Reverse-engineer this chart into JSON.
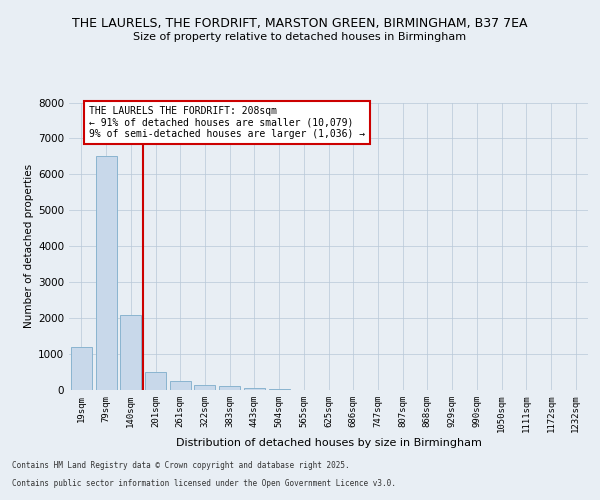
{
  "title_line1": "THE LAURELS, THE FORDRIFT, MARSTON GREEN, BIRMINGHAM, B37 7EA",
  "title_line2": "Size of property relative to detached houses in Birmingham",
  "xlabel": "Distribution of detached houses by size in Birmingham",
  "ylabel": "Number of detached properties",
  "bins": [
    "19sqm",
    "79sqm",
    "140sqm",
    "201sqm",
    "261sqm",
    "322sqm",
    "383sqm",
    "443sqm",
    "504sqm",
    "565sqm",
    "625sqm",
    "686sqm",
    "747sqm",
    "807sqm",
    "868sqm",
    "929sqm",
    "990sqm",
    "1050sqm",
    "1111sqm",
    "1172sqm",
    "1232sqm"
  ],
  "values": [
    1200,
    6500,
    2100,
    500,
    250,
    150,
    100,
    50,
    20,
    5,
    2,
    1,
    0,
    0,
    0,
    0,
    0,
    0,
    0,
    0,
    0
  ],
  "bar_color": "#c8d8ea",
  "bar_edge_color": "#8ab4d0",
  "vline_color": "#cc0000",
  "annotation_box_text": "THE LAURELS THE FORDRIFT: 208sqm\n← 91% of detached houses are smaller (10,079)\n9% of semi-detached houses are larger (1,036) →",
  "annotation_box_color": "#cc0000",
  "ylim": [
    0,
    8000
  ],
  "yticks": [
    0,
    1000,
    2000,
    3000,
    4000,
    5000,
    6000,
    7000,
    8000
  ],
  "footer_line1": "Contains HM Land Registry data © Crown copyright and database right 2025.",
  "footer_line2": "Contains public sector information licensed under the Open Government Licence v3.0.",
  "bg_color": "#e8eef4",
  "plot_bg_color": "#e8eef4"
}
